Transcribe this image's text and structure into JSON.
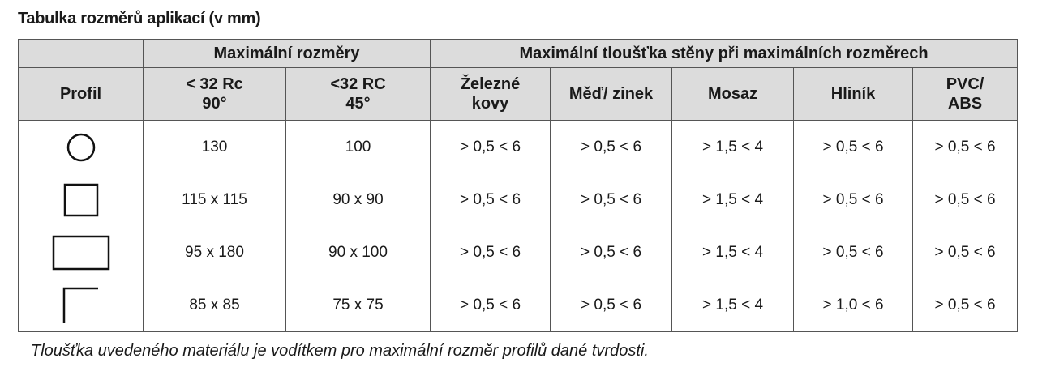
{
  "header": {
    "title": "Tabulka rozměrů aplikací (v mm)"
  },
  "table": {
    "group_headers": [
      "Maximální rozměry",
      "Maximální tloušťka stěny při maximálních rozměrech"
    ],
    "columns": [
      [
        "Profil"
      ],
      [
        "< 32 Rc",
        "90°"
      ],
      [
        "<32 RC",
        "45°"
      ],
      [
        "Železné",
        "kovy"
      ],
      [
        "Měď/ zinek"
      ],
      [
        "Mosaz"
      ],
      [
        "Hliník"
      ],
      [
        "PVC/",
        "ABS"
      ]
    ],
    "rows": [
      [
        "130",
        "100",
        "> 0,5 < 6",
        "> 0,5 < 6",
        "> 1,5 < 4",
        "> 0,5 < 6",
        "> 0,5 < 6"
      ],
      [
        "115 x 115",
        "90 x 90",
        "> 0,5 < 6",
        "> 0,5 < 6",
        "> 1,5 < 4",
        "> 0,5 < 6",
        "> 0,5 < 6"
      ],
      [
        "95 x 180",
        "90 x 100",
        "> 0,5 < 6",
        "> 0,5 < 6",
        "> 1,5 < 4",
        "> 0,5 < 6",
        "> 0,5 < 6"
      ],
      [
        "85 x 85",
        "75 x 75",
        "> 0,5 < 6",
        "> 0,5 < 6",
        "> 1,5 < 4",
        "> 1,0 < 6",
        "> 0,5 < 6"
      ]
    ]
  },
  "footnote": "Tloušťka uvedeného materiálu je vodítkem pro maximální rozměr profilů dané tvrdosti."
}
